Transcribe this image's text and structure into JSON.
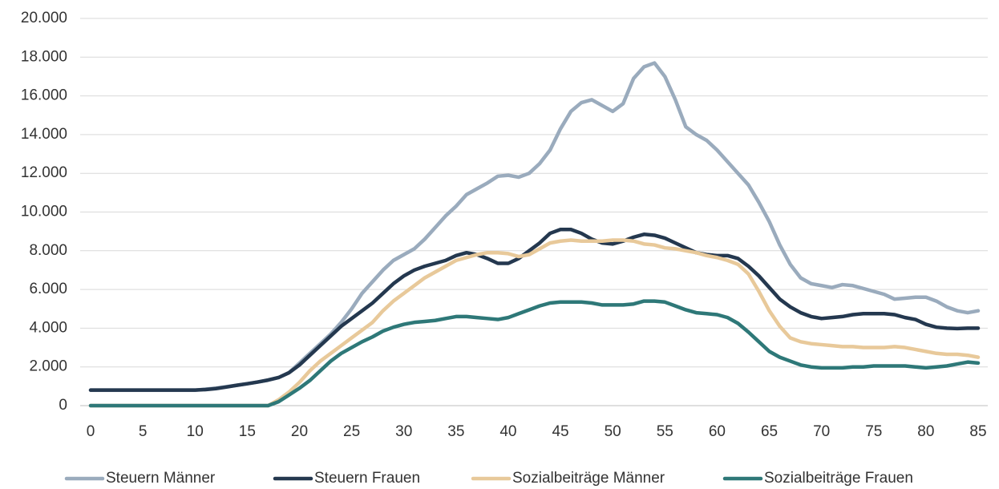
{
  "chart_data": {
    "type": "line",
    "x": [
      0,
      1,
      2,
      3,
      4,
      5,
      6,
      7,
      8,
      9,
      10,
      11,
      12,
      13,
      14,
      15,
      16,
      17,
      18,
      19,
      20,
      21,
      22,
      23,
      24,
      25,
      26,
      27,
      28,
      29,
      30,
      31,
      32,
      33,
      34,
      35,
      36,
      37,
      38,
      39,
      40,
      41,
      42,
      43,
      44,
      45,
      46,
      47,
      48,
      49,
      50,
      51,
      52,
      53,
      54,
      55,
      56,
      57,
      58,
      59,
      60,
      61,
      62,
      63,
      64,
      65,
      66,
      67,
      68,
      69,
      70,
      71,
      72,
      73,
      74,
      75,
      76,
      77,
      78,
      79,
      80,
      81,
      82,
      83,
      84,
      85
    ],
    "xlim": [
      0,
      85
    ],
    "xticks": [
      0,
      5,
      10,
      15,
      20,
      25,
      30,
      35,
      40,
      45,
      50,
      55,
      60,
      65,
      70,
      75,
      80,
      85
    ],
    "ylim": [
      0,
      20000
    ],
    "yticks": [
      0,
      {
        "value": 2000,
        "label": "2.000"
      },
      {
        "value": 4000,
        "label": "4.000"
      },
      {
        "value": 6000,
        "label": "6.000"
      },
      {
        "value": 8000,
        "label": "8.000"
      },
      {
        "value": 10000,
        "label": "10.000"
      },
      {
        "value": 12000,
        "label": "12.000"
      },
      {
        "value": 14000,
        "label": "14.000"
      },
      {
        "value": 16000,
        "label": "16.000"
      },
      {
        "value": 18000,
        "label": "18.000"
      },
      {
        "value": 20000,
        "label": "20.000"
      }
    ],
    "grid": true,
    "legend": "bottom",
    "series": [
      {
        "name": "Steuern Männer",
        "color": "#9aabbd",
        "values": [
          800,
          800,
          800,
          800,
          800,
          800,
          800,
          800,
          800,
          800,
          800,
          850,
          900,
          980,
          1050,
          1130,
          1220,
          1320,
          1450,
          1700,
          2200,
          2700,
          3200,
          3700,
          4300,
          5000,
          5800,
          6400,
          7000,
          7500,
          7800,
          8100,
          8600,
          9200,
          9800,
          10300,
          10900,
          11200,
          11500,
          11850,
          11900,
          11800,
          12000,
          12500,
          13200,
          14300,
          15200,
          15650,
          15800,
          15500,
          15200,
          15600,
          16900,
          17500,
          17700,
          17000,
          15800,
          14400,
          14000,
          13700,
          13200,
          12600,
          12000,
          11400,
          10500,
          9500,
          8300,
          7300,
          6600,
          6300,
          6200,
          6100,
          6250,
          6200,
          6050,
          5900,
          5750,
          5500,
          5550,
          5600,
          5600,
          5400,
          5100,
          4900,
          4800,
          4900
        ]
      },
      {
        "name": "Steuern Frauen",
        "color": "#24384f",
        "values": [
          800,
          800,
          800,
          800,
          800,
          800,
          800,
          800,
          800,
          800,
          800,
          830,
          880,
          960,
          1050,
          1130,
          1220,
          1320,
          1450,
          1700,
          2100,
          2600,
          3100,
          3600,
          4100,
          4500,
          4900,
          5300,
          5800,
          6300,
          6700,
          7000,
          7200,
          7350,
          7500,
          7750,
          7900,
          7800,
          7600,
          7350,
          7350,
          7600,
          8000,
          8400,
          8900,
          9100,
          9100,
          8900,
          8600,
          8400,
          8350,
          8500,
          8700,
          8850,
          8800,
          8650,
          8400,
          8150,
          7900,
          7800,
          7750,
          7750,
          7600,
          7200,
          6700,
          6100,
          5500,
          5100,
          4800,
          4600,
          4500,
          4550,
          4600,
          4700,
          4750,
          4750,
          4750,
          4700,
          4550,
          4450,
          4200,
          4050,
          4000,
          3980,
          4000,
          4000
        ]
      },
      {
        "name": "Sozialbeiträge Männer",
        "color": "#e8c99a",
        "values": [
          0,
          0,
          0,
          0,
          0,
          0,
          0,
          0,
          0,
          0,
          0,
          0,
          0,
          0,
          0,
          0,
          0,
          0,
          300,
          700,
          1200,
          1800,
          2300,
          2700,
          3100,
          3500,
          3900,
          4300,
          4900,
          5400,
          5800,
          6200,
          6600,
          6900,
          7200,
          7500,
          7650,
          7800,
          7900,
          7900,
          7850,
          7700,
          7800,
          8100,
          8400,
          8500,
          8550,
          8500,
          8500,
          8500,
          8550,
          8550,
          8500,
          8350,
          8300,
          8150,
          8100,
          8000,
          7900,
          7750,
          7650,
          7500,
          7300,
          6800,
          5900,
          4900,
          4100,
          3500,
          3300,
          3200,
          3150,
          3100,
          3050,
          3050,
          3000,
          3000,
          3000,
          3050,
          3000,
          2900,
          2800,
          2700,
          2650,
          2650,
          2600,
          2500
        ]
      },
      {
        "name": "Sozialbeiträge Frauen",
        "color": "#2e7878",
        "values": [
          0,
          0,
          0,
          0,
          0,
          0,
          0,
          0,
          0,
          0,
          0,
          0,
          0,
          0,
          0,
          0,
          0,
          0,
          200,
          550,
          900,
          1300,
          1800,
          2300,
          2700,
          3000,
          3300,
          3550,
          3850,
          4050,
          4200,
          4300,
          4350,
          4400,
          4500,
          4600,
          4600,
          4550,
          4500,
          4450,
          4550,
          4750,
          4950,
          5150,
          5300,
          5350,
          5350,
          5350,
          5300,
          5200,
          5200,
          5200,
          5250,
          5400,
          5400,
          5350,
          5150,
          4950,
          4800,
          4750,
          4700,
          4550,
          4250,
          3800,
          3300,
          2800,
          2500,
          2300,
          2100,
          2000,
          1950,
          1950,
          1950,
          2000,
          2000,
          2050,
          2050,
          2050,
          2050,
          2000,
          1950,
          2000,
          2050,
          2150,
          2250,
          2200
        ]
      }
    ]
  }
}
